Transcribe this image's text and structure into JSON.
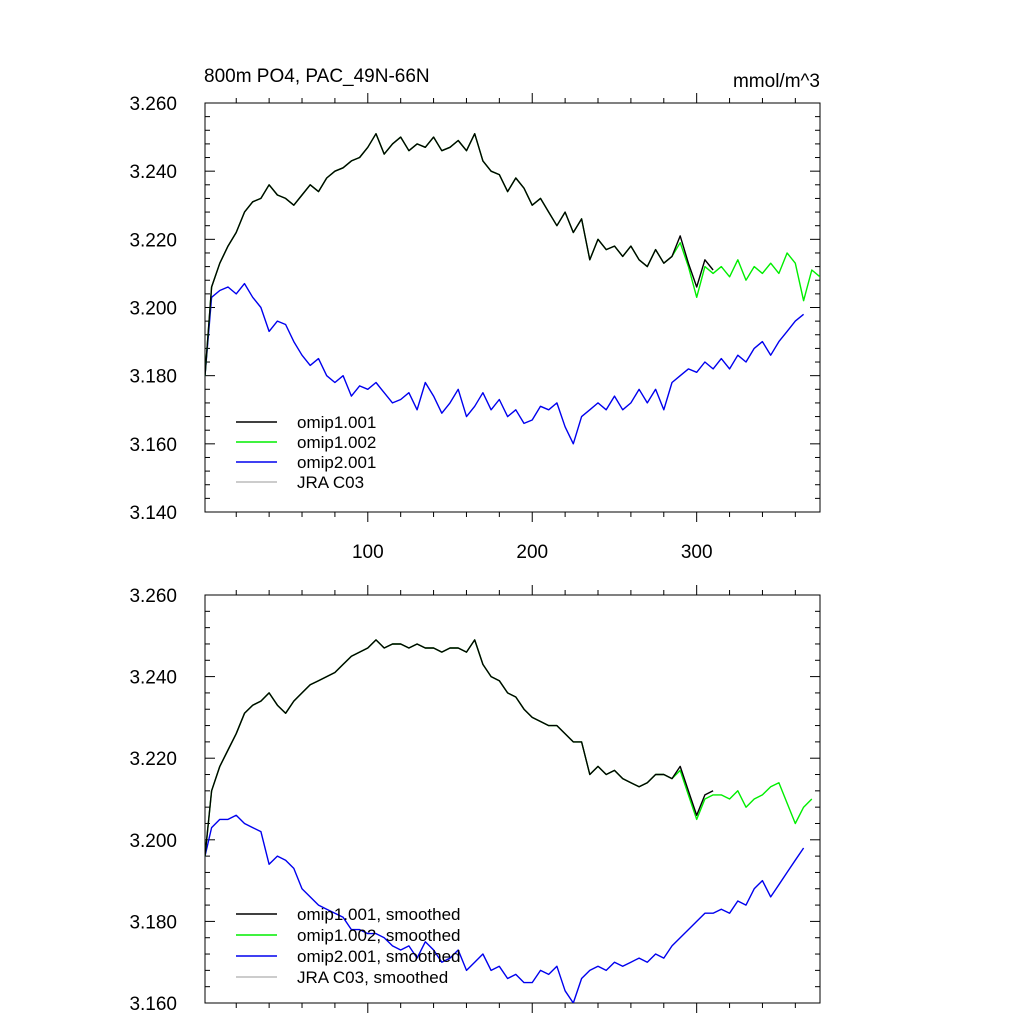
{
  "colors": {
    "omip1_001": "#000000",
    "omip1_002": "#00ee00",
    "omip2_001": "#0000ee",
    "jra_c03": "#bbbbbb"
  },
  "chart_data": [
    {
      "type": "line",
      "title": "800m PO4, PAC_49N-66N",
      "units": "mmol/m^3",
      "xlim": [
        1,
        375
      ],
      "ylim": [
        3.14,
        3.26
      ],
      "x_ticks": [
        100,
        200,
        300
      ],
      "x_tick_labels": [
        "100",
        "200",
        "300"
      ],
      "y_ticks": [
        3.14,
        3.16,
        3.18,
        3.2,
        3.22,
        3.24,
        3.26
      ],
      "y_tick_labels": [
        "3.140",
        "3.160",
        "3.180",
        "3.200",
        "3.220",
        "3.240",
        "3.260"
      ],
      "legend_position": "bottom-left",
      "legend": [
        "omip1.001",
        "omip1.002",
        "omip2.001",
        "JRA C03"
      ],
      "series": [
        {
          "name": "omip1.001",
          "color_key": "omip1_001",
          "x": [
            1,
            5,
            10,
            15,
            20,
            25,
            30,
            35,
            40,
            45,
            50,
            55,
            60,
            65,
            70,
            75,
            80,
            85,
            90,
            95,
            100,
            105,
            110,
            115,
            120,
            125,
            130,
            135,
            140,
            145,
            150,
            155,
            160,
            165,
            170,
            175,
            180,
            185,
            190,
            195,
            200,
            205,
            210,
            215,
            220,
            225,
            230,
            235,
            240,
            245,
            250,
            255,
            260,
            265,
            270,
            275,
            280,
            285,
            290,
            295,
            300,
            305,
            310
          ],
          "y": [
            3.18,
            3.206,
            3.213,
            3.218,
            3.222,
            3.228,
            3.231,
            3.232,
            3.236,
            3.233,
            3.232,
            3.23,
            3.233,
            3.236,
            3.234,
            3.238,
            3.24,
            3.241,
            3.243,
            3.244,
            3.247,
            3.251,
            3.245,
            3.248,
            3.25,
            3.246,
            3.248,
            3.247,
            3.25,
            3.246,
            3.247,
            3.249,
            3.246,
            3.251,
            3.243,
            3.24,
            3.239,
            3.234,
            3.238,
            3.235,
            3.23,
            3.232,
            3.228,
            3.224,
            3.228,
            3.222,
            3.226,
            3.214,
            3.22,
            3.217,
            3.218,
            3.215,
            3.218,
            3.214,
            3.212,
            3.217,
            3.213,
            3.215,
            3.221,
            3.213,
            3.206,
            3.214,
            3.211
          ]
        },
        {
          "name": "omip1.002",
          "color_key": "omip1_002",
          "x": [
            1,
            5,
            10,
            15,
            20,
            25,
            30,
            35,
            40,
            45,
            50,
            55,
            60,
            65,
            70,
            75,
            80,
            85,
            90,
            95,
            100,
            105,
            110,
            115,
            120,
            125,
            130,
            135,
            140,
            145,
            150,
            155,
            160,
            165,
            170,
            175,
            180,
            185,
            190,
            195,
            200,
            205,
            210,
            215,
            220,
            225,
            230,
            235,
            240,
            245,
            250,
            255,
            260,
            265,
            270,
            275,
            280,
            285,
            290,
            295,
            300,
            305,
            310,
            315,
            320,
            325,
            330,
            335,
            340,
            345,
            350,
            355,
            360,
            365,
            370,
            375
          ],
          "y": [
            3.18,
            3.206,
            3.213,
            3.218,
            3.222,
            3.228,
            3.231,
            3.232,
            3.236,
            3.233,
            3.232,
            3.23,
            3.233,
            3.236,
            3.234,
            3.238,
            3.24,
            3.241,
            3.243,
            3.244,
            3.247,
            3.251,
            3.245,
            3.248,
            3.25,
            3.246,
            3.248,
            3.247,
            3.25,
            3.246,
            3.247,
            3.249,
            3.246,
            3.251,
            3.243,
            3.24,
            3.239,
            3.234,
            3.238,
            3.235,
            3.23,
            3.232,
            3.228,
            3.224,
            3.228,
            3.222,
            3.226,
            3.214,
            3.22,
            3.217,
            3.218,
            3.215,
            3.218,
            3.214,
            3.212,
            3.217,
            3.213,
            3.215,
            3.219,
            3.212,
            3.203,
            3.212,
            3.21,
            3.212,
            3.209,
            3.214,
            3.208,
            3.212,
            3.21,
            3.213,
            3.21,
            3.216,
            3.213,
            3.202,
            3.211,
            3.209
          ]
        },
        {
          "name": "omip2.001",
          "color_key": "omip2_001",
          "x": [
            1,
            5,
            10,
            15,
            20,
            25,
            30,
            35,
            40,
            45,
            50,
            55,
            60,
            65,
            70,
            75,
            80,
            85,
            90,
            95,
            100,
            105,
            110,
            115,
            120,
            125,
            130,
            135,
            140,
            145,
            150,
            155,
            160,
            165,
            170,
            175,
            180,
            185,
            190,
            195,
            200,
            205,
            210,
            215,
            220,
            225,
            230,
            235,
            240,
            245,
            250,
            255,
            260,
            265,
            270,
            275,
            280,
            285,
            290,
            295,
            300,
            305,
            310,
            315,
            320,
            325,
            330,
            335,
            340,
            345,
            350,
            355,
            360,
            365
          ],
          "y": [
            3.18,
            3.203,
            3.205,
            3.206,
            3.204,
            3.207,
            3.203,
            3.2,
            3.193,
            3.196,
            3.195,
            3.19,
            3.186,
            3.183,
            3.185,
            3.18,
            3.178,
            3.18,
            3.174,
            3.177,
            3.176,
            3.178,
            3.175,
            3.172,
            3.173,
            3.175,
            3.17,
            3.178,
            3.174,
            3.169,
            3.172,
            3.176,
            3.168,
            3.171,
            3.175,
            3.17,
            3.173,
            3.168,
            3.17,
            3.166,
            3.167,
            3.171,
            3.17,
            3.172,
            3.165,
            3.16,
            3.168,
            3.17,
            3.172,
            3.17,
            3.174,
            3.17,
            3.172,
            3.176,
            3.172,
            3.176,
            3.17,
            3.178,
            3.18,
            3.182,
            3.181,
            3.184,
            3.182,
            3.185,
            3.182,
            3.186,
            3.184,
            3.188,
            3.19,
            3.186,
            3.19,
            3.193,
            3.196,
            3.198
          ]
        },
        {
          "name": "JRA C03",
          "color_key": "jra_c03",
          "x": [],
          "y": []
        }
      ]
    },
    {
      "type": "line",
      "title": "",
      "xlim": [
        1,
        375
      ],
      "ylim": [
        3.16,
        3.26
      ],
      "x_ticks": [
        100,
        200,
        300
      ],
      "x_tick_labels": [],
      "y_ticks": [
        3.16,
        3.18,
        3.2,
        3.22,
        3.24,
        3.26
      ],
      "y_tick_labels": [
        "3.160",
        "3.180",
        "3.200",
        "3.220",
        "3.240",
        "3.260"
      ],
      "legend_position": "bottom-left",
      "legend": [
        "omip1.001, smoothed",
        "omip1.002, smoothed",
        "omip2.001, smoothed",
        "JRA C03, smoothed"
      ],
      "series": [
        {
          "name": "omip1.001, smoothed",
          "color_key": "omip1_001",
          "x": [
            1,
            5,
            10,
            15,
            20,
            25,
            30,
            35,
            40,
            45,
            50,
            55,
            60,
            65,
            70,
            75,
            80,
            85,
            90,
            95,
            100,
            105,
            110,
            115,
            120,
            125,
            130,
            135,
            140,
            145,
            150,
            155,
            160,
            165,
            170,
            175,
            180,
            185,
            190,
            195,
            200,
            205,
            210,
            215,
            220,
            225,
            230,
            235,
            240,
            245,
            250,
            255,
            260,
            265,
            270,
            275,
            280,
            285,
            290,
            295,
            300,
            305,
            310
          ],
          "y": [
            3.196,
            3.212,
            3.218,
            3.222,
            3.226,
            3.231,
            3.233,
            3.234,
            3.236,
            3.233,
            3.231,
            3.234,
            3.236,
            3.238,
            3.239,
            3.24,
            3.241,
            3.243,
            3.245,
            3.246,
            3.247,
            3.249,
            3.247,
            3.248,
            3.248,
            3.247,
            3.248,
            3.247,
            3.247,
            3.246,
            3.247,
            3.247,
            3.246,
            3.249,
            3.243,
            3.24,
            3.239,
            3.236,
            3.235,
            3.232,
            3.23,
            3.229,
            3.228,
            3.228,
            3.226,
            3.224,
            3.224,
            3.216,
            3.218,
            3.216,
            3.217,
            3.215,
            3.214,
            3.213,
            3.214,
            3.216,
            3.216,
            3.215,
            3.218,
            3.212,
            3.206,
            3.211,
            3.212
          ]
        },
        {
          "name": "omip1.002, smoothed",
          "color_key": "omip1_002",
          "x": [
            1,
            5,
            10,
            15,
            20,
            25,
            30,
            35,
            40,
            45,
            50,
            55,
            60,
            65,
            70,
            75,
            80,
            85,
            90,
            95,
            100,
            105,
            110,
            115,
            120,
            125,
            130,
            135,
            140,
            145,
            150,
            155,
            160,
            165,
            170,
            175,
            180,
            185,
            190,
            195,
            200,
            205,
            210,
            215,
            220,
            225,
            230,
            235,
            240,
            245,
            250,
            255,
            260,
            265,
            270,
            275,
            280,
            285,
            290,
            295,
            300,
            305,
            310,
            315,
            320,
            325,
            330,
            335,
            340,
            345,
            350,
            355,
            360,
            365,
            370
          ],
          "y": [
            3.196,
            3.212,
            3.218,
            3.222,
            3.226,
            3.231,
            3.233,
            3.234,
            3.236,
            3.233,
            3.231,
            3.234,
            3.236,
            3.238,
            3.239,
            3.24,
            3.241,
            3.243,
            3.245,
            3.246,
            3.247,
            3.249,
            3.247,
            3.248,
            3.248,
            3.247,
            3.248,
            3.247,
            3.247,
            3.246,
            3.247,
            3.247,
            3.246,
            3.249,
            3.243,
            3.24,
            3.239,
            3.236,
            3.235,
            3.232,
            3.23,
            3.229,
            3.228,
            3.228,
            3.226,
            3.224,
            3.224,
            3.216,
            3.218,
            3.216,
            3.217,
            3.215,
            3.214,
            3.213,
            3.214,
            3.216,
            3.216,
            3.215,
            3.217,
            3.211,
            3.205,
            3.21,
            3.211,
            3.211,
            3.21,
            3.212,
            3.208,
            3.21,
            3.211,
            3.213,
            3.214,
            3.209,
            3.204,
            3.208,
            3.21
          ]
        },
        {
          "name": "omip2.001, smoothed",
          "color_key": "omip2_001",
          "x": [
            1,
            5,
            10,
            15,
            20,
            25,
            30,
            35,
            40,
            45,
            50,
            55,
            60,
            65,
            70,
            75,
            80,
            85,
            90,
            95,
            100,
            105,
            110,
            115,
            120,
            125,
            130,
            135,
            140,
            145,
            150,
            155,
            160,
            165,
            170,
            175,
            180,
            185,
            190,
            195,
            200,
            205,
            210,
            215,
            220,
            225,
            230,
            235,
            240,
            245,
            250,
            255,
            260,
            265,
            270,
            275,
            280,
            285,
            290,
            295,
            300,
            305,
            310,
            315,
            320,
            325,
            330,
            335,
            340,
            345,
            350,
            355,
            360,
            365
          ],
          "y": [
            3.196,
            3.203,
            3.205,
            3.205,
            3.206,
            3.204,
            3.203,
            3.202,
            3.194,
            3.196,
            3.195,
            3.193,
            3.188,
            3.186,
            3.184,
            3.183,
            3.182,
            3.181,
            3.178,
            3.178,
            3.177,
            3.177,
            3.176,
            3.174,
            3.173,
            3.174,
            3.171,
            3.175,
            3.173,
            3.17,
            3.171,
            3.173,
            3.168,
            3.17,
            3.172,
            3.168,
            3.169,
            3.166,
            3.167,
            3.165,
            3.165,
            3.168,
            3.167,
            3.169,
            3.163,
            3.16,
            3.166,
            3.168,
            3.169,
            3.168,
            3.17,
            3.169,
            3.17,
            3.171,
            3.17,
            3.172,
            3.171,
            3.174,
            3.176,
            3.178,
            3.18,
            3.182,
            3.182,
            3.183,
            3.182,
            3.185,
            3.184,
            3.188,
            3.19,
            3.186,
            3.189,
            3.192,
            3.195,
            3.198
          ]
        },
        {
          "name": "JRA C03, smoothed",
          "color_key": "jra_c03",
          "x": [],
          "y": []
        }
      ]
    }
  ]
}
